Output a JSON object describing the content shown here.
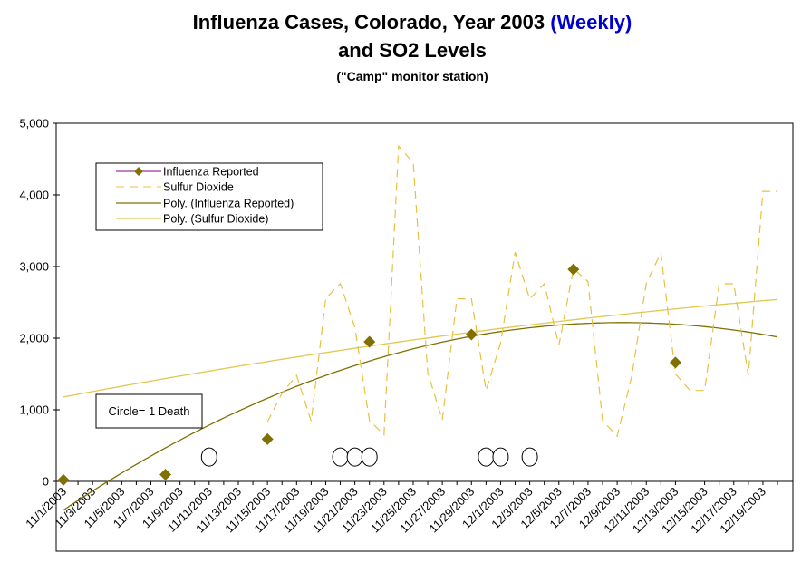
{
  "colors": {
    "influenza_marker": "#807000",
    "influenza_legend_line": "#800080",
    "sulfur_dioxide": "#E8C040",
    "poly_influenza": "#807000",
    "poly_sulfur": "#E0C850",
    "weekly_highlight": "#0000CC"
  },
  "chart_data": {
    "type": "line",
    "title_part1": "Influenza Cases, Colorado, Year 2003",
    "title_highlight": "(Weekly)",
    "title_line2": "and SO2 Levels",
    "subtitle": "(\"Camp\" monitor station)",
    "xlabel": "",
    "ylabel": "",
    "ylim": [
      0,
      5000
    ],
    "y_ticks": [
      0,
      1000,
      2000,
      3000,
      4000,
      5000
    ],
    "y_tick_labels": [
      "0",
      "1,000",
      "2,000",
      "3,000",
      "4,000",
      "5,000"
    ],
    "x_tick_labels": [
      "11/1/2003",
      "11/3/2003",
      "11/5/2003",
      "11/7/2003",
      "11/9/2003",
      "11/11/2003",
      "11/13/2003",
      "11/15/2003",
      "11/17/2003",
      "11/19/2003",
      "11/21/2003",
      "11/23/2003",
      "11/25/2003",
      "11/27/2003",
      "11/29/2003",
      "12/1/2003",
      "12/3/2003",
      "12/5/2003",
      "12/7/2003",
      "12/9/2003",
      "12/11/2003",
      "12/13/2003",
      "12/15/2003",
      "12/17/2003",
      "12/19/2003"
    ],
    "grid": false,
    "legend_position": "top-left",
    "series": [
      {
        "name": "Influenza Reported",
        "style": "markers",
        "x": [
          "11/1/2003",
          "11/8/2003",
          "11/15/2003",
          "11/22/2003",
          "11/29/2003",
          "12/6/2003",
          "12/13/2003"
        ],
        "values": [
          20,
          95,
          590,
          1950,
          2050,
          2960,
          1660
        ]
      },
      {
        "name": "Sulfur Dioxide",
        "style": "dashed",
        "x": [
          "11/15/2003",
          "11/16/2003",
          "11/17/2003",
          "11/18/2003",
          "11/19/2003",
          "11/20/2003",
          "11/21/2003",
          "11/22/2003",
          "11/23/2003",
          "11/24/2003",
          "11/25/2003",
          "11/26/2003",
          "11/27/2003",
          "11/28/2003",
          "11/29/2003",
          "11/30/2003",
          "12/1/2003",
          "12/2/2003",
          "12/3/2003",
          "12/4/2003",
          "12/5/2003",
          "12/6/2003",
          "12/7/2003",
          "12/8/2003",
          "12/9/2003",
          "12/10/2003",
          "12/11/2003",
          "12/12/2003",
          "12/13/2003",
          "12/14/2003",
          "12/15/2003",
          "12/16/2003",
          "12/17/2003",
          "12/18/2003",
          "12/19/2003",
          "12/20/2003"
        ],
        "values": [
          830,
          1230,
          1480,
          840,
          2560,
          2760,
          2150,
          850,
          650,
          4680,
          4450,
          1520,
          860,
          2550,
          2550,
          1270,
          1930,
          3200,
          2550,
          2760,
          1900,
          2970,
          2790,
          850,
          630,
          1470,
          2770,
          3190,
          1500,
          1270,
          1270,
          2760,
          2760,
          1480,
          4050,
          4050
        ]
      }
    ],
    "trendlines": [
      {
        "name": "Poly. (Influenza Reported)",
        "of": "Influenza Reported",
        "type": "polynomial"
      },
      {
        "name": "Poly. (Sulfur Dioxide)",
        "of": "Sulfur Dioxide",
        "type": "polynomial"
      }
    ],
    "deaths": {
      "note": "Circle= 1 Death",
      "dates": [
        "11/11/2003",
        "11/20/2003",
        "11/21/2003",
        "11/22/2003",
        "11/30/2003",
        "12/1/2003",
        "12/3/2003"
      ]
    }
  }
}
